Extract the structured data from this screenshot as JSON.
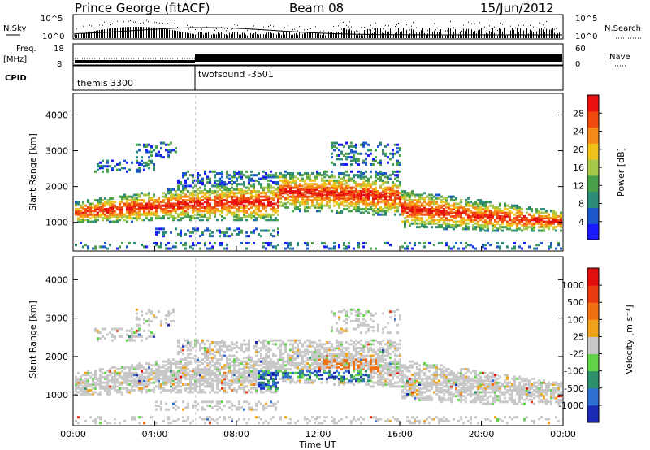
{
  "header": {
    "station": "Prince George (fitACF)",
    "beam": "Beam 08",
    "date": "15/Jun/2012"
  },
  "top_panels": {
    "nsky_label": "N.Sky",
    "nsky_ticks": [
      "10^5",
      "10^0"
    ],
    "nsearch_label": "N.Search",
    "nsearch_ticks": [
      "10^5",
      "10^0"
    ],
    "freq_label": "Freq.",
    "freq_unit": "[MHz]",
    "freq_ticks": [
      "18",
      "8"
    ],
    "nave_label": "Nave",
    "nave_ticks": [
      "60",
      "0"
    ],
    "cpid_label": "CPID",
    "cpid_entries": [
      {
        "text": "themis 3300"
      },
      {
        "text": "twofsound -3501"
      }
    ]
  },
  "chart_data": [
    {
      "type": "heatmap",
      "name": "power",
      "ylabel": "Slant Range [km]",
      "yticks": [
        "4000",
        "3000",
        "2000",
        "1000"
      ],
      "ytick_values": [
        4000,
        3000,
        2000,
        1000
      ],
      "ylim": [
        200,
        4600
      ],
      "xlim_hours": [
        0,
        24
      ],
      "colorbar": {
        "label": "Power [dB]",
        "ticks": [
          "28",
          "24",
          "20",
          "16",
          "12",
          "8",
          "4"
        ],
        "colors": [
          "#1a1aff",
          "#1c58c8",
          "#2d8a78",
          "#4aa04a",
          "#a8c84a",
          "#f0c21c",
          "#f58a1c",
          "#f04a10",
          "#e81010"
        ]
      }
    },
    {
      "type": "heatmap",
      "name": "velocity",
      "ylabel": "Slant Range [km]",
      "yticks": [
        "4000",
        "3000",
        "2000",
        "1000"
      ],
      "ytick_values": [
        4000,
        3000,
        2000,
        1000
      ],
      "ylim": [
        200,
        4600
      ],
      "xlim_hours": [
        0,
        24
      ],
      "colorbar": {
        "label": "Velocity [m s⁻¹]",
        "ticks": [
          "1000",
          "500",
          "100",
          "25",
          "-25",
          "-100",
          "-500",
          "-1000"
        ],
        "colors": [
          "#1a2ab4",
          "#2f6fd0",
          "#2e8f6a",
          "#62d24a",
          "#c8c8c8",
          "#f0a21c",
          "#f07014",
          "#e83a10",
          "#e01010"
        ]
      }
    }
  ],
  "xaxis": {
    "ticks": [
      "00:00",
      "04:00",
      "08:00",
      "12:00",
      "16:00",
      "20:00",
      "00:00"
    ],
    "tick_hours": [
      0,
      4,
      8,
      12,
      16,
      20,
      24
    ],
    "label": "Time UT"
  }
}
